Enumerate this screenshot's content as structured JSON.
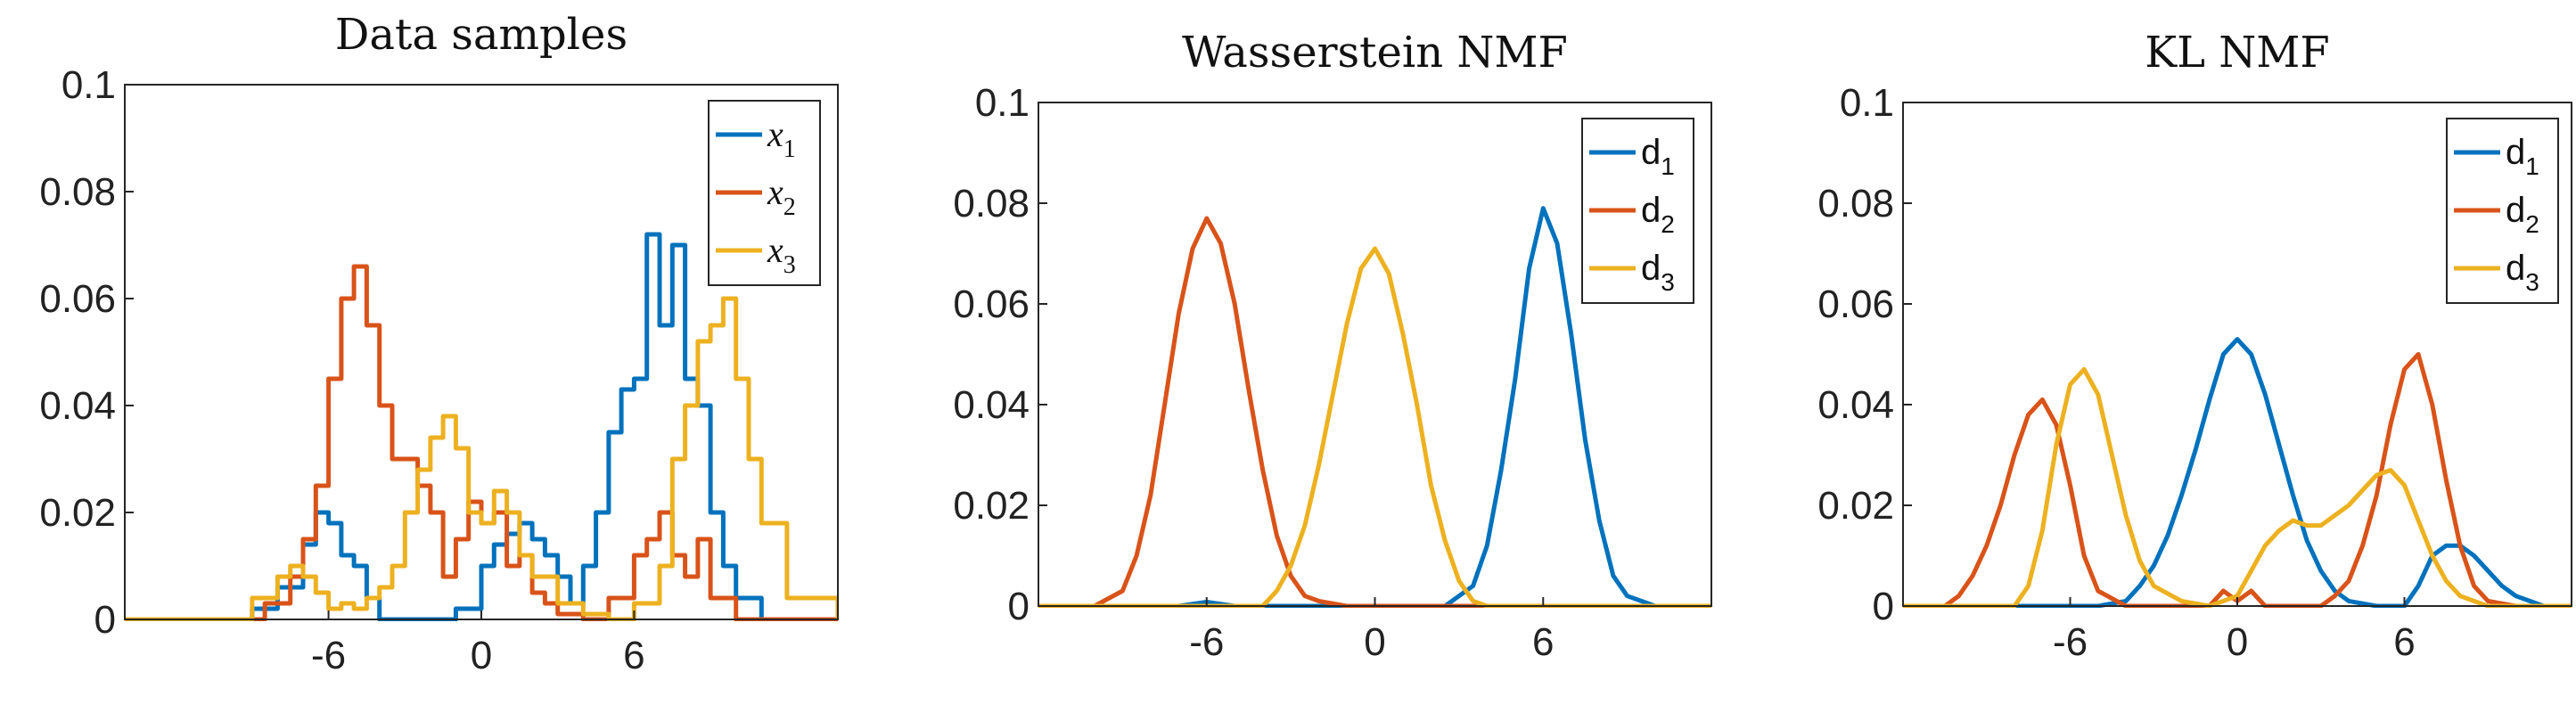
{
  "chart_data": [
    {
      "type": "line",
      "title": "Data samples",
      "xlabel": "",
      "ylabel": "",
      "xlim": [
        -14,
        14
      ],
      "ylim": [
        0,
        0.1
      ],
      "xticks": [
        "-6",
        "0",
        "6"
      ],
      "yticks": [
        "0",
        "0.02",
        "0.04",
        "0.06",
        "0.08",
        "0.1"
      ],
      "legend": "top-right",
      "legend_style": "math",
      "series": [
        {
          "name": "x1",
          "sub": "1",
          "color": "#0072BD",
          "x": [
            -14,
            -11,
            -9,
            -8,
            -7,
            -6.5,
            -6,
            -5.5,
            -5,
            -4.5,
            -4,
            -3.5,
            -3,
            -2,
            -1,
            0,
            0.5,
            1,
            1.5,
            2,
            2.5,
            3,
            3.5,
            4,
            4.5,
            5,
            5.5,
            6,
            6.5,
            7,
            7.5,
            8,
            8.5,
            9,
            9.5,
            10,
            11,
            14
          ],
          "y": [
            0,
            0,
            0.002,
            0.006,
            0.014,
            0.02,
            0.018,
            0.012,
            0.01,
            0.004,
            0,
            0,
            0,
            0,
            0.002,
            0.01,
            0.014,
            0.016,
            0.018,
            0.015,
            0.012,
            0.008,
            0.003,
            0.01,
            0.02,
            0.035,
            0.043,
            0.045,
            0.072,
            0.055,
            0.07,
            0.045,
            0.04,
            0.02,
            0.01,
            0.004,
            0,
            0
          ]
        },
        {
          "name": "x2",
          "sub": "2",
          "color": "#D95319",
          "x": [
            -14,
            -10,
            -8.5,
            -7.5,
            -7,
            -6.5,
            -6,
            -5.5,
            -5,
            -4.5,
            -4,
            -3.5,
            -3,
            -2.5,
            -2,
            -1.5,
            -1,
            -0.5,
            0,
            0.5,
            1,
            1.5,
            2,
            2.5,
            3,
            4,
            5,
            6,
            6.5,
            7,
            7.5,
            8,
            8.5,
            9,
            10,
            14
          ],
          "y": [
            0,
            0,
            0.003,
            0.008,
            0.015,
            0.025,
            0.045,
            0.06,
            0.066,
            0.055,
            0.04,
            0.03,
            0.03,
            0.025,
            0.02,
            0.008,
            0.015,
            0.022,
            0.018,
            0.02,
            0.01,
            0.012,
            0.005,
            0.003,
            0.001,
            0,
            0.004,
            0.012,
            0.015,
            0.02,
            0.012,
            0.008,
            0.015,
            0.004,
            0,
            0
          ]
        },
        {
          "name": "x3",
          "sub": "3",
          "color": "#EDB120",
          "x": [
            -14,
            -10,
            -9,
            -8,
            -7.5,
            -7,
            -6.5,
            -6,
            -5.5,
            -5,
            -4.5,
            -4,
            -3.5,
            -3,
            -2.5,
            -2,
            -1.5,
            -1,
            -0.5,
            0,
            0.5,
            1,
            1.5,
            2,
            3,
            4,
            5,
            6,
            7,
            7.5,
            8,
            8.5,
            9,
            9.5,
            10,
            10.5,
            11,
            12,
            14
          ],
          "y": [
            0,
            0,
            0.004,
            0.008,
            0.01,
            0.008,
            0.005,
            0.002,
            0.003,
            0.002,
            0.004,
            0.006,
            0.01,
            0.02,
            0.028,
            0.034,
            0.038,
            0.032,
            0.02,
            0.018,
            0.024,
            0.02,
            0.012,
            0.008,
            0.003,
            0.001,
            0,
            0.003,
            0.01,
            0.03,
            0.04,
            0.052,
            0.055,
            0.06,
            0.045,
            0.03,
            0.018,
            0.004,
            0
          ]
        }
      ]
    },
    {
      "type": "line",
      "title": "Wasserstein NMF",
      "xlabel": "",
      "ylabel": "",
      "xlim": [
        -12,
        12
      ],
      "ylim": [
        0,
        0.1
      ],
      "xticks": [
        "-6",
        "0",
        "6"
      ],
      "yticks": [
        "0",
        "0.02",
        "0.04",
        "0.06",
        "0.08",
        "0.1"
      ],
      "legend": "top-right",
      "legend_style": "plain",
      "series": [
        {
          "name": "d1",
          "sub": "1",
          "color": "#0072BD",
          "x": [
            -12,
            -7,
            -6,
            -5,
            0,
            2.5,
            3.5,
            4,
            4.5,
            5,
            5.5,
            6,
            6.5,
            7,
            7.5,
            8,
            8.5,
            9,
            10,
            12
          ],
          "y": [
            0,
            0,
            0.0008,
            0,
            0,
            0,
            0.004,
            0.012,
            0.027,
            0.045,
            0.067,
            0.079,
            0.072,
            0.054,
            0.033,
            0.017,
            0.006,
            0.002,
            0,
            0
          ]
        },
        {
          "name": "d2",
          "sub": "2",
          "color": "#D95319",
          "x": [
            -12,
            -10,
            -9,
            -8.5,
            -8,
            -7.5,
            -7,
            -6.5,
            -6,
            -5.5,
            -5,
            -4.5,
            -4,
            -3.5,
            -3,
            -2.5,
            -2,
            -1,
            0,
            12
          ],
          "y": [
            0,
            0,
            0.003,
            0.01,
            0.022,
            0.04,
            0.058,
            0.071,
            0.077,
            0.072,
            0.06,
            0.043,
            0.027,
            0.014,
            0.006,
            0.002,
            0.001,
            0,
            0,
            0
          ]
        },
        {
          "name": "d3",
          "sub": "3",
          "color": "#EDB120",
          "x": [
            -12,
            -4,
            -3.5,
            -3,
            -2.5,
            -2,
            -1.5,
            -1,
            -0.5,
            0,
            0.5,
            1,
            1.5,
            2,
            2.5,
            3,
            3.5,
            4,
            12
          ],
          "y": [
            0,
            0,
            0.003,
            0.008,
            0.016,
            0.028,
            0.042,
            0.056,
            0.067,
            0.071,
            0.066,
            0.054,
            0.04,
            0.024,
            0.013,
            0.005,
            0.001,
            0,
            0
          ]
        }
      ]
    },
    {
      "type": "line",
      "title": "KL NMF",
      "xlabel": "",
      "ylabel": "",
      "xlim": [
        -12,
        12
      ],
      "ylim": [
        0,
        0.1
      ],
      "xticks": [
        "-6",
        "0",
        "6"
      ],
      "yticks": [
        "0",
        "0.02",
        "0.04",
        "0.06",
        "0.08",
        "0.1"
      ],
      "legend": "top-right",
      "legend_style": "plain",
      "series": [
        {
          "name": "d1",
          "sub": "1",
          "color": "#0072BD",
          "x": [
            -12,
            -6,
            -5,
            -4,
            -3.5,
            -3,
            -2.5,
            -2,
            -1.5,
            -1,
            -0.5,
            0,
            0.5,
            1,
            1.5,
            2,
            2.5,
            3,
            3.5,
            4,
            5,
            6,
            6.5,
            7,
            7.5,
            8,
            8.5,
            9,
            9.5,
            10,
            11,
            12
          ],
          "y": [
            0,
            0,
            0,
            0.001,
            0.004,
            0.008,
            0.014,
            0.022,
            0.031,
            0.041,
            0.05,
            0.053,
            0.05,
            0.042,
            0.032,
            0.022,
            0.013,
            0.007,
            0.003,
            0.001,
            0,
            0,
            0.004,
            0.01,
            0.012,
            0.012,
            0.01,
            0.007,
            0.004,
            0.002,
            0,
            0
          ]
        },
        {
          "name": "d2",
          "sub": "2",
          "color": "#D95319",
          "x": [
            -12,
            -10.5,
            -10,
            -9.5,
            -9,
            -8.5,
            -8,
            -7.5,
            -7,
            -6.5,
            -6,
            -5.5,
            -5,
            -4,
            -1,
            -0.5,
            0,
            0.5,
            1,
            2,
            3,
            3.5,
            4,
            4.5,
            5,
            5.5,
            6,
            6.5,
            7,
            7.5,
            8,
            8.5,
            9,
            10,
            12
          ],
          "y": [
            0,
            0,
            0.002,
            0.006,
            0.012,
            0.02,
            0.03,
            0.038,
            0.041,
            0.036,
            0.024,
            0.01,
            0.003,
            0,
            0,
            0.003,
            0.001,
            0.003,
            0,
            0,
            0,
            0.002,
            0.005,
            0.012,
            0.022,
            0.036,
            0.047,
            0.05,
            0.04,
            0.025,
            0.012,
            0.004,
            0.001,
            0,
            0
          ]
        },
        {
          "name": "d3",
          "sub": "3",
          "color": "#EDB120",
          "x": [
            -12,
            -8,
            -7.5,
            -7,
            -6.5,
            -6,
            -5.5,
            -5,
            -4.5,
            -4,
            -3.5,
            -3,
            -2,
            -1,
            0,
            0.5,
            1,
            1.5,
            2,
            2.5,
            3,
            3.5,
            4,
            4.5,
            5,
            5.5,
            6,
            6.5,
            7,
            7.5,
            8,
            8.5,
            9,
            10,
            12
          ],
          "y": [
            0,
            0,
            0.004,
            0.015,
            0.032,
            0.044,
            0.047,
            0.042,
            0.03,
            0.018,
            0.009,
            0.004,
            0.001,
            0,
            0.002,
            0.007,
            0.012,
            0.015,
            0.017,
            0.016,
            0.016,
            0.018,
            0.02,
            0.023,
            0.026,
            0.027,
            0.024,
            0.017,
            0.01,
            0.005,
            0.002,
            0.001,
            0,
            0,
            0
          ]
        }
      ]
    }
  ]
}
